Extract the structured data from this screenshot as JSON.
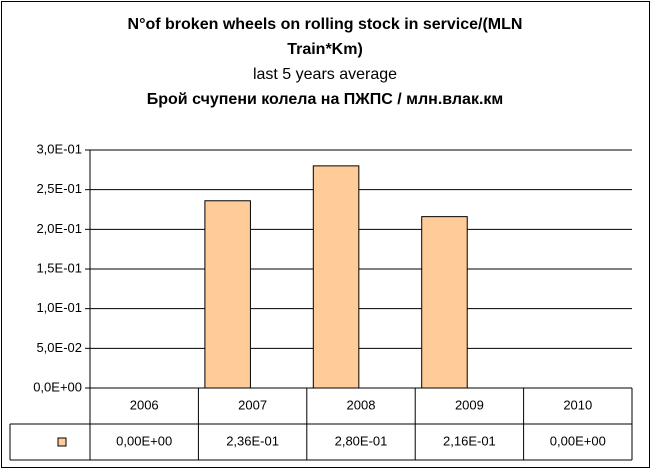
{
  "chart_data": {
    "type": "bar",
    "title": "N°of broken wheels on rolling stock in service/(MLN Train*Km)",
    "subtitle": "last 5 years average",
    "subtitle2": "Брой счупени колела на ПЖПС / млн.влак.км",
    "categories": [
      "2006",
      "2007",
      "2008",
      "2009",
      "2010"
    ],
    "values": [
      0,
      0.236,
      0.28,
      0.216,
      0
    ],
    "value_labels": [
      "0,00E+00",
      "2,36E-01",
      "2,80E-01",
      "2,16E-01",
      "0,00E+00"
    ],
    "color": "#ffcc99",
    "ylim": [
      0,
      0.3
    ],
    "yticks": [
      {
        "value": 0,
        "label": "0,0E+00"
      },
      {
        "value": 0.05,
        "label": "5,0E-02"
      },
      {
        "value": 0.1,
        "label": "1,0E-01"
      },
      {
        "value": 0.15,
        "label": "1,5E-01"
      },
      {
        "value": 0.2,
        "label": "2,0E-01"
      },
      {
        "value": 0.25,
        "label": "2,5E-01"
      },
      {
        "value": 0.3,
        "label": "3,0E-01"
      }
    ],
    "grid": true
  }
}
